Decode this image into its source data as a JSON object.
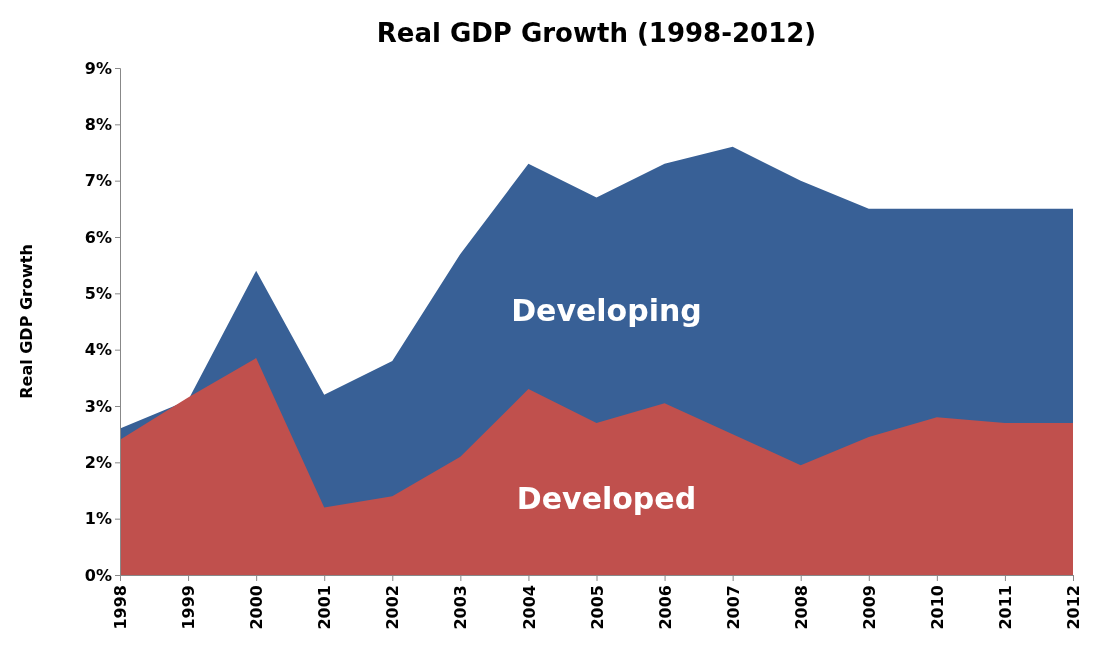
{
  "chart_data": {
    "type": "area",
    "title": "Real GDP Growth (1998-2012)",
    "ylabel": "Real GDP Growth",
    "categories": [
      "1998",
      "1999",
      "2000",
      "2001",
      "2002",
      "2003",
      "2004",
      "2005",
      "2006",
      "2007",
      "2008",
      "2009",
      "2010",
      "2011",
      "2012"
    ],
    "series": [
      {
        "name": "Developing",
        "color": "#386096",
        "values": [
          2.6,
          3.1,
          5.4,
          3.2,
          3.8,
          5.7,
          7.3,
          6.7,
          7.3,
          7.6,
          7.0,
          6.5,
          6.5,
          6.5,
          6.5
        ]
      },
      {
        "name": "Developed",
        "color": "#c0504d",
        "values": [
          2.4,
          3.15,
          3.85,
          1.2,
          1.4,
          2.1,
          3.3,
          2.7,
          3.05,
          2.5,
          1.95,
          2.45,
          2.8,
          2.7,
          2.7
        ]
      }
    ],
    "ylim": [
      0,
      9
    ],
    "yticks": [
      {
        "value": 0,
        "label": "0%"
      },
      {
        "value": 1,
        "label": "1%"
      },
      {
        "value": 2,
        "label": "2%"
      },
      {
        "value": 3,
        "label": "3%"
      },
      {
        "value": 4,
        "label": "4%"
      },
      {
        "value": 5,
        "label": "5%"
      },
      {
        "value": 6,
        "label": "6%"
      },
      {
        "value": 7,
        "label": "7%"
      },
      {
        "value": 8,
        "label": "8%"
      },
      {
        "value": 9,
        "label": "9%"
      }
    ],
    "grid": false,
    "legend": false
  }
}
